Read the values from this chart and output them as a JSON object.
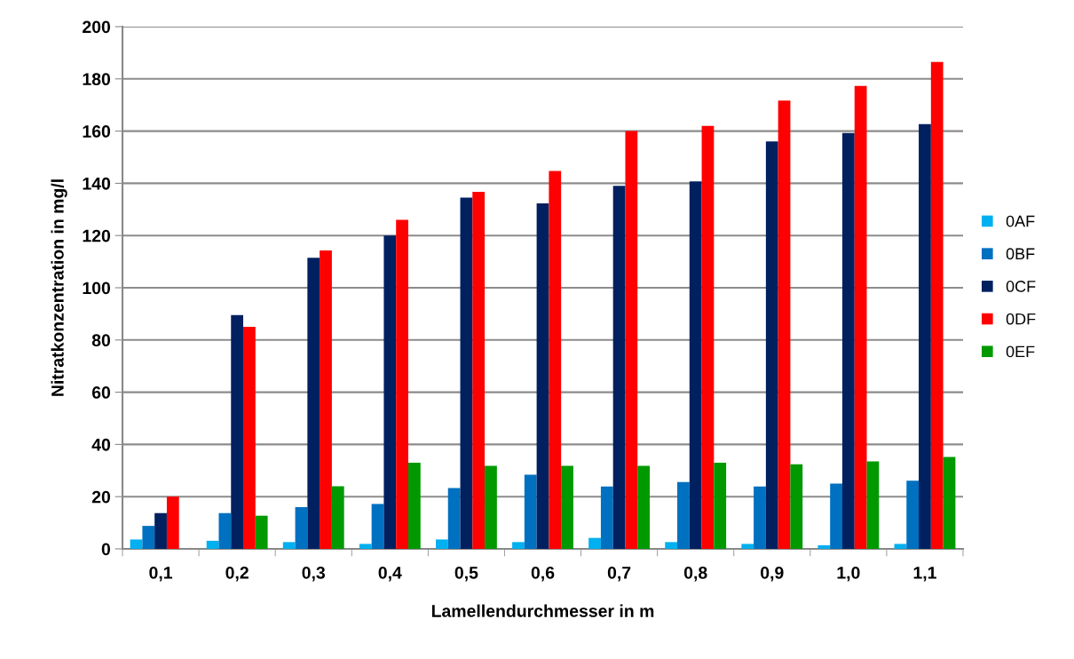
{
  "chart_data": {
    "type": "bar",
    "xlabel": "Lamellendurchmesser in m",
    "ylabel": "Nitratkonzentration in mg/l",
    "categories": [
      "0,1",
      "0,2",
      "0,3",
      "0,4",
      "0,5",
      "0,6",
      "0,7",
      "0,8",
      "0,9",
      "1,0",
      "1,1"
    ],
    "series": [
      {
        "name": "0AF",
        "color": "#00b0f0",
        "values": [
          3.6,
          3.1,
          2.6,
          1.9,
          3.6,
          2.6,
          4.2,
          2.6,
          1.9,
          1.4,
          1.9
        ]
      },
      {
        "name": "0BF",
        "color": "#0070c0",
        "values": [
          8.8,
          13.7,
          16,
          17.2,
          23.3,
          28.4,
          23.9,
          25.6,
          23.9,
          25,
          26.1
        ]
      },
      {
        "name": "0CF",
        "color": "#002060",
        "values": [
          13.7,
          89.5,
          111.5,
          120,
          134.5,
          132.3,
          139,
          140.7,
          156,
          159.3,
          162.7
        ]
      },
      {
        "name": "0DF",
        "color": "#ff0000",
        "values": [
          20,
          85,
          114.3,
          126,
          136.7,
          144.7,
          160,
          162,
          171.7,
          177.3,
          186.5
        ]
      },
      {
        "name": "0EF",
        "color": "#009900",
        "values": [
          null,
          12.7,
          24,
          33,
          31.8,
          31.8,
          31.8,
          33,
          32.4,
          33.5,
          35.2
        ]
      }
    ],
    "ylim": [
      0,
      200
    ],
    "yticks": [
      0,
      20,
      40,
      60,
      80,
      100,
      120,
      140,
      160,
      180,
      200
    ],
    "grid": "y",
    "legend": "right"
  }
}
